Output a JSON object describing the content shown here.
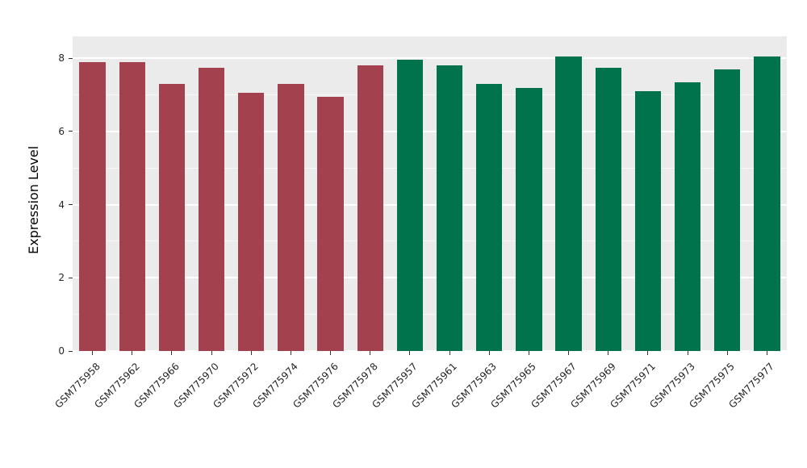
{
  "chart_data": {
    "type": "bar",
    "title": "",
    "xlabel": "",
    "ylabel": "Expression Level",
    "ylim": [
      0,
      8.6
    ],
    "yticks": [
      0,
      2,
      4,
      6,
      8
    ],
    "yticks_minor": [
      1,
      3,
      5,
      7
    ],
    "grid": "on",
    "legend": "none",
    "panel_background": "#ebebeb",
    "categories": [
      "GSM775958",
      "GSM775962",
      "GSM775966",
      "GSM775970",
      "GSM775972",
      "GSM775974",
      "GSM775976",
      "GSM775978",
      "GSM775957",
      "GSM775961",
      "GSM775963",
      "GSM775965",
      "GSM775967",
      "GSM775969",
      "GSM775971",
      "GSM775973",
      "GSM775975",
      "GSM775977"
    ],
    "values": [
      7.9,
      7.9,
      7.3,
      7.75,
      7.05,
      7.3,
      6.95,
      7.8,
      7.95,
      7.8,
      7.3,
      7.2,
      8.05,
      7.75,
      7.1,
      7.35,
      7.7,
      8.05
    ],
    "bar_colors": [
      "#A3414F",
      "#A3414F",
      "#A3414F",
      "#A3414F",
      "#A3414F",
      "#A3414F",
      "#A3414F",
      "#A3414F",
      "#00724C",
      "#00724C",
      "#00724C",
      "#00724C",
      "#00724C",
      "#00724C",
      "#00724C",
      "#00724C",
      "#00724C",
      "#00724C"
    ],
    "group_colors": {
      "group1": "#A3414F",
      "group2": "#00724C"
    }
  },
  "layout_text": {
    "y_axis_title": "Expression Level"
  }
}
